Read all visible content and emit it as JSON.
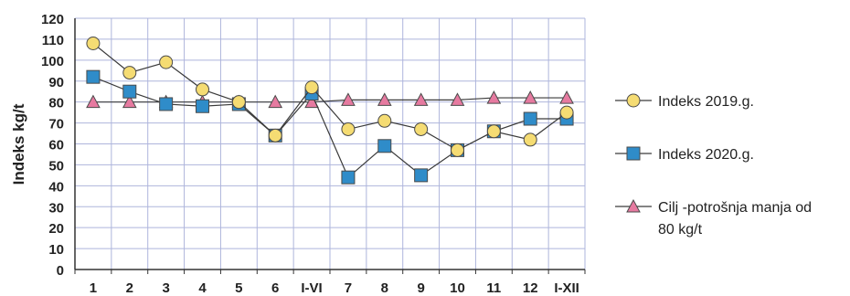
{
  "chart_data": {
    "type": "line",
    "ylabel": "Indeks kg/t",
    "ylim": [
      0,
      120
    ],
    "yticks": [
      0,
      10,
      20,
      30,
      40,
      50,
      60,
      70,
      80,
      90,
      100,
      110,
      120
    ],
    "categories": [
      "1",
      "2",
      "3",
      "4",
      "5",
      "6",
      "I-VI",
      "7",
      "8",
      "9",
      "10",
      "11",
      "12",
      "I-XII"
    ],
    "grid": true,
    "legend_position": "right",
    "series": [
      {
        "name": "Indeks 2019.g.",
        "marker": "circle",
        "color": "#f5dc73",
        "values": [
          108,
          94,
          99,
          86,
          80,
          64,
          87,
          67,
          71,
          67,
          57,
          66,
          62,
          75
        ]
      },
      {
        "name": "Indeks 2020.g.",
        "marker": "square",
        "color": "#2f8cc9",
        "values": [
          92,
          85,
          79,
          78,
          79,
          64,
          84,
          44,
          59,
          45,
          57,
          66,
          72,
          72
        ]
      },
      {
        "name": "Cilj -potrošnja manja od 80 kg/t",
        "legend_lines": [
          "Cilj -potrošnja manja od",
          "80 kg/t"
        ],
        "marker": "triangle",
        "color": "#e67aa0",
        "values": [
          80,
          80,
          80,
          80,
          80,
          80,
          80,
          81,
          81,
          81,
          81,
          82,
          82,
          82
        ]
      }
    ]
  }
}
